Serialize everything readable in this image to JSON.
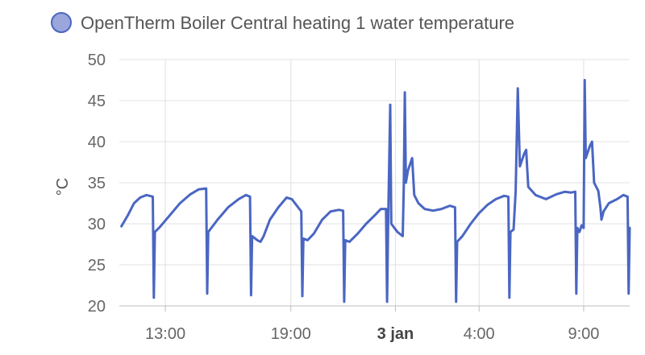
{
  "chart_data": {
    "type": "line",
    "legend": {
      "position": "top-left",
      "entries": [
        {
          "name": "OpenTherm Boiler Central heating 1 water temperature",
          "color": "#4a66c2",
          "fill": "#9aa6dc"
        }
      ]
    },
    "ylabel": "°C",
    "ylim": [
      20,
      50
    ],
    "y_ticks": [
      20,
      25,
      30,
      35,
      40,
      45,
      50
    ],
    "x_range_hours": [
      10.8,
      35.2
    ],
    "x_ticks": [
      {
        "label": "13:00",
        "hour": 13,
        "bold": false
      },
      {
        "label": "19:00",
        "hour": 19,
        "bold": false
      },
      {
        "label": "3 jan",
        "hour": 24,
        "bold": true
      },
      {
        "label": "4:00",
        "hour": 28,
        "bold": false
      },
      {
        "label": "9:00",
        "hour": 33,
        "bold": false
      }
    ],
    "grid": true,
    "series": [
      {
        "name": "OpenTherm Boiler Central heating 1 water temperature",
        "color": "#4a66c2",
        "points": [
          [
            10.9,
            29.7
          ],
          [
            11.2,
            31.0
          ],
          [
            11.5,
            32.5
          ],
          [
            11.8,
            33.2
          ],
          [
            12.1,
            33.5
          ],
          [
            12.4,
            33.3
          ],
          [
            12.45,
            21.0
          ],
          [
            12.5,
            29.0
          ],
          [
            12.7,
            29.5
          ],
          [
            13.2,
            31.0
          ],
          [
            13.7,
            32.5
          ],
          [
            14.2,
            33.6
          ],
          [
            14.6,
            34.2
          ],
          [
            14.95,
            34.3
          ],
          [
            15.0,
            21.5
          ],
          [
            15.05,
            29.0
          ],
          [
            15.5,
            30.5
          ],
          [
            16.0,
            32.0
          ],
          [
            16.5,
            33.0
          ],
          [
            16.85,
            33.5
          ],
          [
            17.05,
            33.3
          ],
          [
            17.1,
            21.3
          ],
          [
            17.15,
            28.5
          ],
          [
            17.4,
            28.0
          ],
          [
            17.55,
            27.8
          ],
          [
            17.7,
            28.5
          ],
          [
            18.0,
            30.5
          ],
          [
            18.4,
            32.0
          ],
          [
            18.8,
            33.2
          ],
          [
            19.05,
            33.0
          ],
          [
            19.35,
            32.0
          ],
          [
            19.5,
            31.5
          ],
          [
            19.55,
            21.2
          ],
          [
            19.6,
            28.2
          ],
          [
            19.8,
            28.0
          ],
          [
            20.1,
            28.8
          ],
          [
            20.5,
            30.5
          ],
          [
            20.9,
            31.5
          ],
          [
            21.3,
            31.7
          ],
          [
            21.5,
            31.6
          ],
          [
            21.55,
            20.5
          ],
          [
            21.6,
            28.0
          ],
          [
            21.8,
            27.8
          ],
          [
            22.2,
            28.8
          ],
          [
            22.6,
            30.0
          ],
          [
            23.0,
            31.0
          ],
          [
            23.3,
            31.8
          ],
          [
            23.55,
            31.8
          ],
          [
            23.6,
            20.5
          ],
          [
            23.65,
            30.0
          ],
          [
            23.75,
            44.5
          ],
          [
            23.8,
            30.0
          ],
          [
            24.1,
            29.0
          ],
          [
            24.35,
            28.5
          ],
          [
            24.4,
            34.5
          ],
          [
            24.45,
            46.0
          ],
          [
            24.5,
            35.0
          ],
          [
            24.6,
            36.5
          ],
          [
            24.8,
            38.0
          ],
          [
            24.9,
            33.5
          ],
          [
            25.1,
            32.5
          ],
          [
            25.4,
            31.8
          ],
          [
            25.8,
            31.6
          ],
          [
            26.2,
            31.8
          ],
          [
            26.6,
            32.2
          ],
          [
            26.85,
            32.0
          ],
          [
            26.9,
            20.5
          ],
          [
            26.95,
            27.8
          ],
          [
            27.2,
            28.5
          ],
          [
            27.6,
            30.0
          ],
          [
            28.0,
            31.3
          ],
          [
            28.4,
            32.3
          ],
          [
            28.8,
            33.0
          ],
          [
            29.2,
            33.4
          ],
          [
            29.4,
            33.3
          ],
          [
            29.45,
            21.0
          ],
          [
            29.5,
            29.0
          ],
          [
            29.65,
            29.3
          ],
          [
            29.75,
            34.0
          ],
          [
            29.85,
            46.5
          ],
          [
            29.95,
            37.0
          ],
          [
            30.15,
            38.5
          ],
          [
            30.25,
            39.0
          ],
          [
            30.35,
            34.5
          ],
          [
            30.7,
            33.5
          ],
          [
            31.2,
            33.0
          ],
          [
            31.7,
            33.6
          ],
          [
            32.1,
            33.9
          ],
          [
            32.4,
            33.8
          ],
          [
            32.6,
            33.9
          ],
          [
            32.65,
            21.5
          ],
          [
            32.7,
            29.5
          ],
          [
            32.8,
            29.0
          ],
          [
            32.9,
            29.8
          ],
          [
            33.0,
            29.5
          ],
          [
            33.05,
            47.5
          ],
          [
            33.1,
            38.0
          ],
          [
            33.3,
            39.5
          ],
          [
            33.4,
            40.0
          ],
          [
            33.5,
            35.0
          ],
          [
            33.7,
            34.0
          ],
          [
            33.8,
            32.0
          ],
          [
            33.85,
            30.5
          ],
          [
            33.95,
            31.5
          ],
          [
            34.2,
            32.5
          ],
          [
            34.6,
            33.0
          ],
          [
            34.9,
            33.5
          ],
          [
            35.1,
            33.3
          ],
          [
            35.15,
            21.5
          ],
          [
            35.2,
            29.5
          ]
        ]
      }
    ]
  }
}
